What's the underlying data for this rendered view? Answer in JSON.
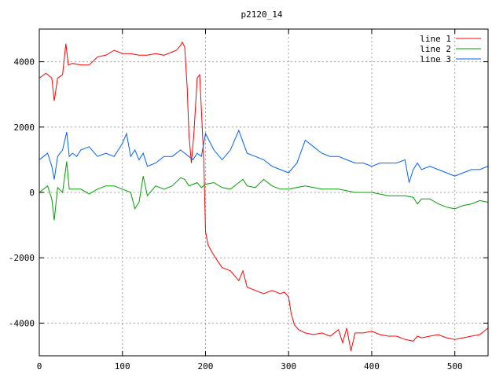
{
  "chart_data": {
    "type": "line",
    "title": "p2120_14",
    "xlabel": "",
    "ylabel": "",
    "xlim": [
      0,
      540
    ],
    "ylim": [
      -5000,
      5000
    ],
    "xticks": [
      0,
      100,
      200,
      300,
      400,
      500
    ],
    "yticks": [
      -4000,
      -2000,
      0,
      2000,
      4000
    ],
    "grid": true,
    "legend": "top-right",
    "series": [
      {
        "name": "line 1",
        "color": "#ff0000",
        "x": [
          0,
          8,
          15,
          18,
          22,
          28,
          32,
          35,
          40,
          50,
          60,
          70,
          80,
          90,
          100,
          110,
          120,
          130,
          140,
          150,
          160,
          165,
          170,
          172,
          175,
          178,
          180,
          183,
          186,
          190,
          193,
          196,
          198,
          200,
          203,
          207,
          212,
          220,
          230,
          240,
          245,
          250,
          260,
          270,
          280,
          290,
          295,
          300,
          303,
          307,
          312,
          320,
          330,
          340,
          350,
          360,
          365,
          370,
          375,
          380,
          390,
          400,
          410,
          420,
          430,
          440,
          450,
          455,
          460,
          470,
          480,
          490,
          500,
          510,
          520,
          530,
          540
        ],
        "y": [
          3500,
          3650,
          3500,
          2800,
          3500,
          3600,
          4550,
          3900,
          3950,
          3900,
          3900,
          4150,
          4200,
          4350,
          4250,
          4250,
          4200,
          4200,
          4250,
          4200,
          4300,
          4350,
          4500,
          4600,
          4450,
          3200,
          1800,
          900,
          1800,
          3500,
          3600,
          2000,
          900,
          -1200,
          -1600,
          -1800,
          -2000,
          -2300,
          -2400,
          -2700,
          -2400,
          -2900,
          -3000,
          -3100,
          -3000,
          -3100,
          -3050,
          -3200,
          -3700,
          -4050,
          -4200,
          -4300,
          -4350,
          -4300,
          -4400,
          -4200,
          -4600,
          -4150,
          -4850,
          -4300,
          -4300,
          -4250,
          -4350,
          -4400,
          -4400,
          -4500,
          -4550,
          -4400,
          -4450,
          -4400,
          -4350,
          -4450,
          -4500,
          -4450,
          -4400,
          -4350,
          -4150
        ]
      },
      {
        "name": "line 2",
        "color": "#00a000",
        "x": [
          0,
          5,
          10,
          15,
          18,
          22,
          28,
          33,
          36,
          40,
          50,
          60,
          70,
          80,
          90,
          100,
          110,
          115,
          120,
          125,
          130,
          135,
          140,
          150,
          160,
          170,
          175,
          180,
          185,
          190,
          195,
          200,
          210,
          220,
          230,
          240,
          245,
          250,
          260,
          270,
          280,
          290,
          300,
          320,
          340,
          360,
          380,
          400,
          420,
          440,
          450,
          455,
          460,
          470,
          480,
          490,
          500,
          510,
          520,
          530,
          540
        ],
        "y": [
          0,
          100,
          200,
          -200,
          -850,
          150,
          0,
          950,
          100,
          100,
          100,
          -50,
          100,
          200,
          200,
          100,
          0,
          -500,
          -300,
          500,
          -100,
          50,
          200,
          100,
          200,
          450,
          400,
          200,
          250,
          300,
          150,
          250,
          300,
          150,
          100,
          300,
          400,
          200,
          150,
          400,
          200,
          100,
          100,
          200,
          100,
          100,
          0,
          0,
          -100,
          -100,
          -150,
          -350,
          -200,
          -200,
          -350,
          -450,
          -500,
          -400,
          -350,
          -250,
          -300
        ]
      },
      {
        "name": "line 3",
        "color": "#0060ff",
        "x": [
          0,
          5,
          10,
          15,
          18,
          22,
          28,
          33,
          36,
          40,
          45,
          50,
          60,
          70,
          80,
          90,
          100,
          105,
          110,
          115,
          120,
          125,
          130,
          140,
          150,
          160,
          170,
          175,
          180,
          185,
          190,
          195,
          200,
          210,
          220,
          230,
          235,
          240,
          250,
          260,
          270,
          280,
          290,
          300,
          310,
          320,
          330,
          340,
          350,
          360,
          370,
          380,
          390,
          400,
          410,
          420,
          430,
          440,
          445,
          450,
          455,
          460,
          470,
          480,
          490,
          500,
          510,
          520,
          530,
          540
        ],
        "y": [
          1000,
          1100,
          1200,
          800,
          400,
          1100,
          1300,
          1850,
          1100,
          1200,
          1100,
          1300,
          1400,
          1100,
          1200,
          1100,
          1500,
          1800,
          1100,
          1300,
          1000,
          1200,
          800,
          900,
          1100,
          1100,
          1300,
          1200,
          1100,
          1000,
          1200,
          1100,
          1800,
          1300,
          1000,
          1300,
          1600,
          1900,
          1200,
          1100,
          1000,
          800,
          700,
          600,
          900,
          1600,
          1400,
          1200,
          1100,
          1100,
          1000,
          900,
          900,
          800,
          900,
          900,
          900,
          1000,
          300,
          700,
          900,
          700,
          800,
          700,
          600,
          500,
          600,
          700,
          700,
          800
        ]
      }
    ]
  }
}
